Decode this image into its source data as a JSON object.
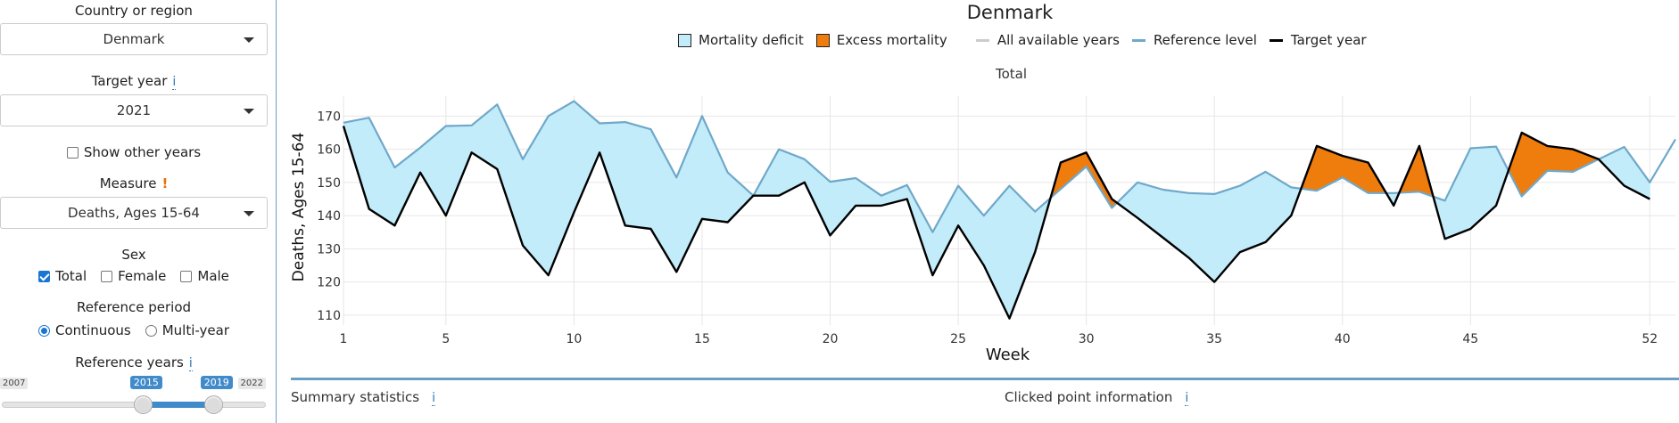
{
  "sidebar": {
    "country_label": "Country or region",
    "country_value": "Denmark",
    "target_year_label": "Target year",
    "target_year_value": "2021",
    "info_icon": "i",
    "show_other_years_label": "Show other years",
    "show_other_years_checked": false,
    "measure_label": "Measure",
    "measure_warning": "!",
    "measure_value": "Deaths, Ages 15-64",
    "sex_label": "Sex",
    "sex_options": [
      {
        "label": "Total",
        "checked": true
      },
      {
        "label": "Female",
        "checked": false
      },
      {
        "label": "Male",
        "checked": false
      }
    ],
    "reference_period_label": "Reference period",
    "reference_period_options": [
      {
        "label": "Continuous",
        "selected": true
      },
      {
        "label": "Multi-year",
        "selected": false
      }
    ],
    "reference_years_label": "Reference years",
    "slider": {
      "min": 2007,
      "max": 2022,
      "from": 2015,
      "to": 2019,
      "min_label": "2007",
      "max_label": "2022",
      "from_label": "2015",
      "to_label": "2019"
    }
  },
  "tabs": {
    "summary_label": "Summary statistics",
    "clicked_label": "Clicked point information",
    "info_icon": "i"
  },
  "chart_data": {
    "type": "area",
    "title": "Denmark",
    "subtitle": "Total",
    "xlabel": "Week",
    "ylabel": "Deaths, Ages 15-64",
    "xlim": [
      1,
      53
    ],
    "ylim": [
      107,
      176
    ],
    "x_ticks": [
      1,
      5,
      10,
      15,
      20,
      25,
      30,
      35,
      40,
      45,
      52
    ],
    "x_tick_labels": [
      "1",
      "5",
      "10",
      "15",
      "20",
      "25",
      "30",
      "35",
      "40",
      "45",
      "52"
    ],
    "y_ticks": [
      110,
      120,
      130,
      140,
      150,
      160,
      170
    ],
    "y_tick_labels": [
      "110",
      "120",
      "130",
      "140",
      "150",
      "160",
      "170"
    ],
    "grid": true,
    "legend_position": "top",
    "legend": [
      {
        "label": "Mortality deficit",
        "kind": "box",
        "color": "#c2ecfa"
      },
      {
        "label": "Excess mortality",
        "kind": "box",
        "color": "#ef7d0d"
      },
      {
        "label": "All available years",
        "kind": "line",
        "color": "#cccccc"
      },
      {
        "label": "Reference level",
        "kind": "line",
        "color": "#6fa8c9"
      },
      {
        "label": "Target year",
        "kind": "line",
        "color": "#000000"
      }
    ],
    "colors": {
      "deficit": "#c2ecfa",
      "excess": "#ef7d0d",
      "reference": "#6fa8c9",
      "target": "#000000"
    },
    "weeks": [
      1,
      2,
      3,
      4,
      5,
      6,
      7,
      8,
      9,
      10,
      11,
      12,
      13,
      14,
      15,
      16,
      17,
      18,
      19,
      20,
      21,
      22,
      23,
      24,
      25,
      26,
      27,
      28,
      29,
      30,
      31,
      32,
      33,
      34,
      35,
      36,
      37,
      38,
      39,
      40,
      41,
      42,
      43,
      44,
      45,
      46,
      47,
      48,
      49,
      50,
      51,
      52,
      53
    ],
    "series": [
      {
        "name": "Reference level",
        "values": [
          168,
          169.5,
          154.5,
          160.5,
          167,
          167.2,
          173.5,
          157,
          170,
          174.5,
          167.8,
          168.2,
          166,
          151.5,
          170,
          153,
          146,
          160,
          157,
          150.2,
          151.3,
          146,
          149.2,
          135,
          149,
          140,
          149,
          141.2,
          148,
          154.8,
          142.3,
          150,
          147.8,
          146.8,
          146.5,
          149,
          153.2,
          148.5,
          147.5,
          151.5,
          146.8,
          146.8,
          147.2,
          144.5,
          160.3,
          160.8,
          145.8,
          153.5,
          153.2,
          157,
          160.7,
          150,
          163
        ]
      },
      {
        "name": "Target year",
        "values": [
          167,
          142,
          137,
          153,
          140,
          159,
          154,
          131,
          122,
          141,
          159,
          137,
          136,
          123,
          139,
          138,
          146,
          146,
          150,
          134,
          143,
          143,
          145,
          122,
          137,
          125,
          109,
          129,
          156,
          159,
          145,
          139.3,
          133.3,
          127.3,
          120,
          129,
          132,
          140,
          161,
          158,
          156,
          143,
          161,
          133,
          136,
          143,
          165,
          161,
          160,
          157,
          149,
          145,
          null
        ]
      }
    ]
  }
}
